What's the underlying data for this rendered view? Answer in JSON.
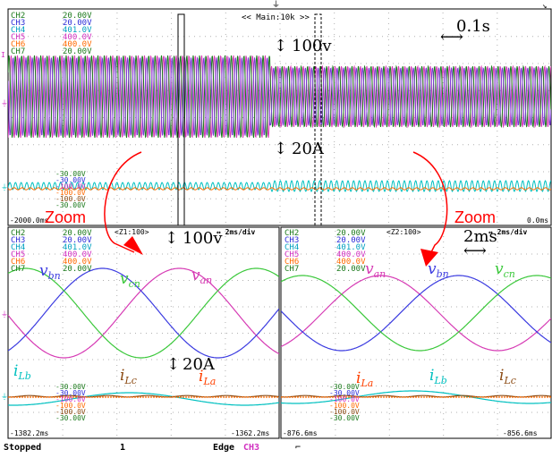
{
  "colors": {
    "grid": "#b0b0b0",
    "border": "#000000",
    "ch2": "#1c7a1c",
    "ch3": "#2b2bd8",
    "ch4": "#d12fc0",
    "ch5": "#8b4a12",
    "ch6": "#ff6a00",
    "cyan": "#00c0c0",
    "green_v": "#3ac83a",
    "blue_v": "#3b3be0",
    "magenta_v": "#d63ab4",
    "zoom_red": "#ff0000",
    "status_ch3": "#d12fc0"
  },
  "main_panel": {
    "header": "<< Main:10k >>",
    "channel_list": [
      {
        "name": "CH2",
        "value": "20.00V"
      },
      {
        "name": "CH3",
        "value": "20.00V"
      },
      {
        "name": "CH4",
        "value": "401.0V"
      },
      {
        "name": "CH5",
        "value": "400.0V"
      },
      {
        "name": "CH6",
        "value": "400.0V"
      },
      {
        "name": "CH7",
        "value": "20.00V"
      }
    ],
    "lower_scale": [
      "-30.00V",
      "-30.00V",
      "-100.0V",
      "-100.0V",
      "-100.0V",
      "-30.00V"
    ],
    "time_left": "-2000.0ms",
    "time_right": "0.0ms",
    "annot_voltage": "100v",
    "annot_current": "20A",
    "annot_time": "0.1s"
  },
  "zoom1": {
    "header": "<Z1:100>",
    "timebase": "↔ 2ms/div",
    "channel_list": [
      {
        "name": "CH2",
        "value": "20.00V"
      },
      {
        "name": "CH3",
        "value": "20.00V"
      },
      {
        "name": "CH4",
        "value": "401.0V"
      },
      {
        "name": "CH5",
        "value": "400.0V"
      },
      {
        "name": "CH6",
        "value": "400.0V"
      },
      {
        "name": "CH7",
        "value": "20.00V"
      }
    ],
    "lower_scale": [
      "-30.00V",
      "-30.00V",
      "-100.0V",
      "-100.0V",
      "-100.0V",
      "-30.00V"
    ],
    "time_left": "-1382.2ms",
    "time_right": "-1362.2ms",
    "annot_voltage": "100v",
    "annot_current": "20A",
    "labels": {
      "vbn_main": "v",
      "vbn_sub": "bn",
      "vcn_main": "v",
      "vcn_sub": "cn",
      "van_main": "v",
      "van_sub": "an",
      "ilb_main": "i",
      "ilb_sub": "Lb",
      "ilc_main": "i",
      "ilc_sub": "Lc",
      "ila_main": "i",
      "ila_sub": "La"
    }
  },
  "zoom2": {
    "header": "<Z2:100>",
    "timebase": "↔ 2ms/div",
    "channel_list": [
      {
        "name": "CH2",
        "value": "20.00V"
      },
      {
        "name": "CH3",
        "value": "20.00V"
      },
      {
        "name": "CH4",
        "value": "401.0V"
      },
      {
        "name": "CH5",
        "value": "400.0V"
      },
      {
        "name": "CH6",
        "value": "400.0V"
      },
      {
        "name": "CH7",
        "value": "20.00V"
      }
    ],
    "lower_scale": [
      "-30.00V",
      "-30.00V",
      "-100.0V",
      "-100.0V",
      "-100.0V",
      "-30.00V"
    ],
    "time_left": "-876.6ms",
    "time_right": "-856.6ms",
    "annot_time": "2ms",
    "labels": {
      "van_main": "v",
      "van_sub": "an",
      "vbn_main": "v",
      "vbn_sub": "bn",
      "vcn_main": "v",
      "vcn_sub": "cn",
      "ila_main": "i",
      "ila_sub": "La",
      "ilb_main": "i",
      "ilb_sub": "Lb",
      "ilc_main": "i",
      "ilc_sub": "Lc"
    }
  },
  "zoom_label_left": "Zoom",
  "zoom_label_right": "Zoom",
  "status_bar": {
    "state": "Stopped",
    "count": "1",
    "trigger_mode": "Edge",
    "trigger_source": "CH3",
    "trigger_slope_icon": "falling-edge-icon"
  }
}
